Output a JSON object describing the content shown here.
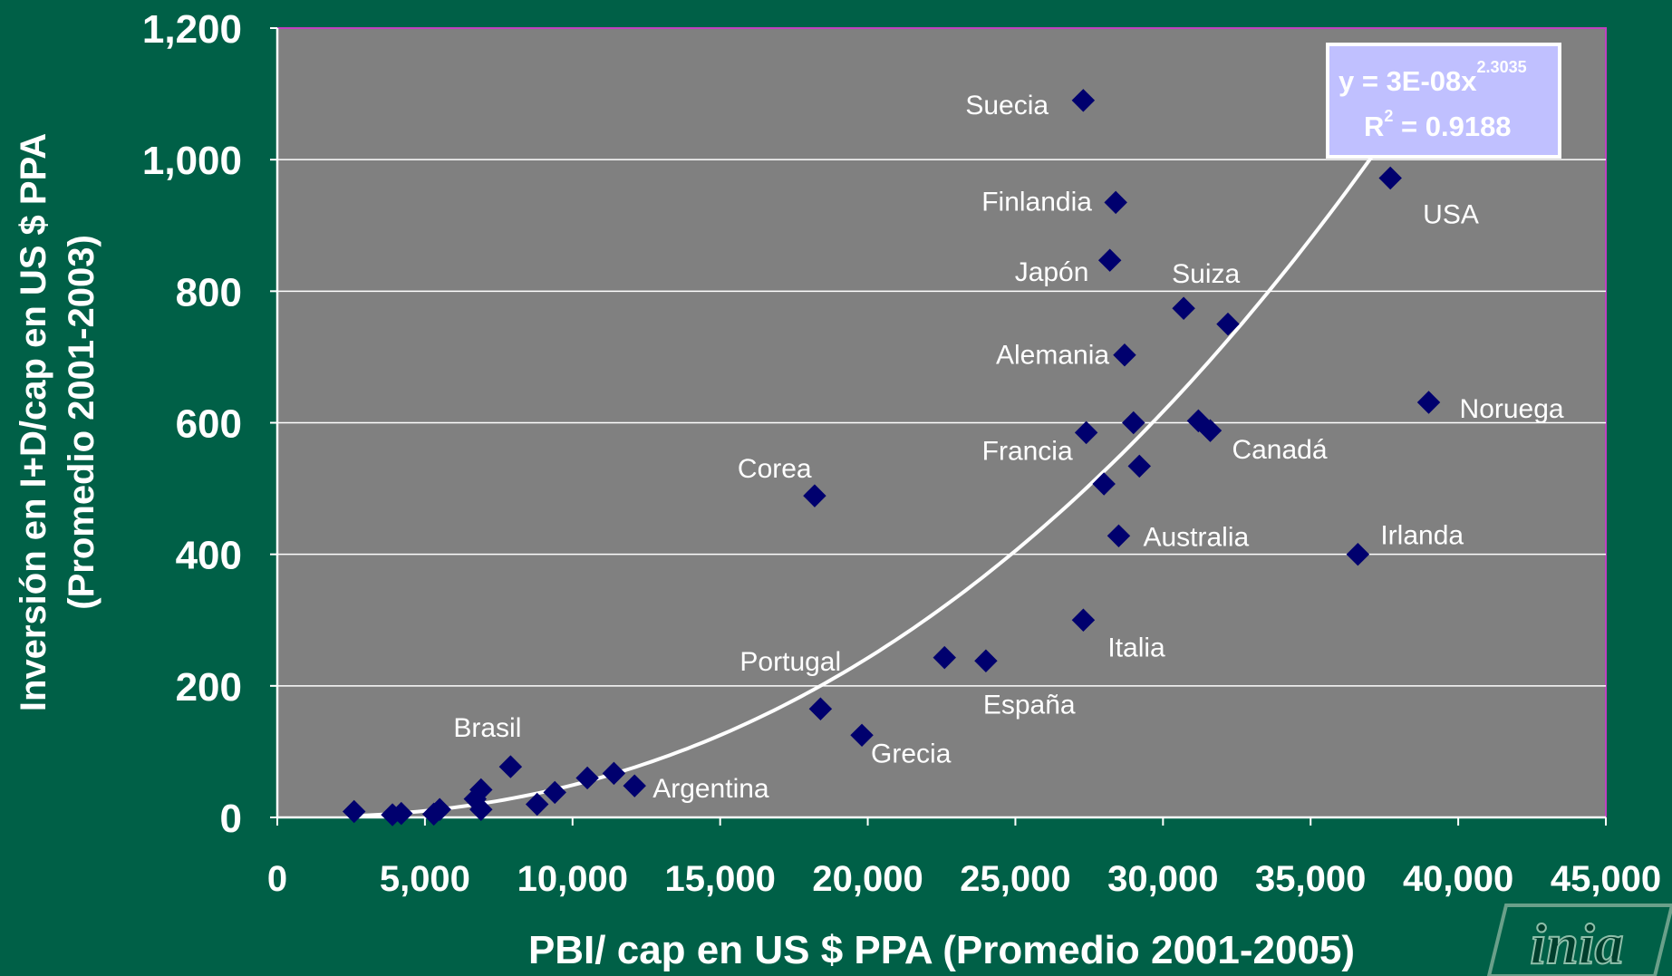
{
  "chart_data": {
    "type": "scatter",
    "xlabel": "PBI/ cap en US $ PPA  (Promedio 2001-2005)",
    "ylabel_line1": "Inversión en I+D/cap en US $ PPA",
    "ylabel_line2": "(Promedio 2001-2003)",
    "xlim": [
      0,
      45000
    ],
    "ylim": [
      0,
      1200
    ],
    "x_ticks": [
      "0",
      "5,000",
      "10,000",
      "15,000",
      "20,000",
      "25,000",
      "30,000",
      "35,000",
      "40,000",
      "45,000"
    ],
    "y_ticks": [
      "0",
      "200",
      "400",
      "600",
      "800",
      "1,000",
      "1,200"
    ],
    "grid": "horizontal",
    "marker_color": "#00006e",
    "plot_background": "#808080",
    "trendline": {
      "a": 3e-08,
      "b": 2.3035,
      "x_start": 2700,
      "x_end": 38000,
      "equation_prefix": "y = 3E-08x",
      "equation_exponent": "2.3035",
      "r2_prefix": "R",
      "r2_sup": "2",
      "r2_value": " = 0.9188"
    },
    "points": [
      {
        "x": 27300,
        "y": 1090,
        "label": "Suecia"
      },
      {
        "x": 28400,
        "y": 935,
        "label": "Finlandia"
      },
      {
        "x": 28200,
        "y": 847,
        "label": "Japón"
      },
      {
        "x": 30700,
        "y": 774,
        "label": "Suiza"
      },
      {
        "x": 32200,
        "y": 750,
        "label": ""
      },
      {
        "x": 28700,
        "y": 703,
        "label": "Alemania"
      },
      {
        "x": 37700,
        "y": 972,
        "label": "USA"
      },
      {
        "x": 39000,
        "y": 631,
        "label": "Noruega"
      },
      {
        "x": 27400,
        "y": 585,
        "label": "Francia"
      },
      {
        "x": 29000,
        "y": 600,
        "label": ""
      },
      {
        "x": 31200,
        "y": 603,
        "label": ""
      },
      {
        "x": 31600,
        "y": 588,
        "label": "Canadá"
      },
      {
        "x": 29200,
        "y": 534,
        "label": ""
      },
      {
        "x": 28000,
        "y": 507,
        "label": ""
      },
      {
        "x": 28500,
        "y": 428,
        "label": "Australia"
      },
      {
        "x": 36600,
        "y": 400,
        "label": "Irlanda"
      },
      {
        "x": 18200,
        "y": 489,
        "label": "Corea"
      },
      {
        "x": 27300,
        "y": 300,
        "label": "Italia"
      },
      {
        "x": 22600,
        "y": 243,
        "label": ""
      },
      {
        "x": 24000,
        "y": 238,
        "label": "España"
      },
      {
        "x": 18400,
        "y": 165,
        "label": "Portugal"
      },
      {
        "x": 19800,
        "y": 125,
        "label": "Grecia"
      },
      {
        "x": 7900,
        "y": 77,
        "label": "Brasil"
      },
      {
        "x": 12100,
        "y": 48,
        "label": "Argentina"
      },
      {
        "x": 11400,
        "y": 67,
        "label": ""
      },
      {
        "x": 10500,
        "y": 60,
        "label": ""
      },
      {
        "x": 9400,
        "y": 38,
        "label": ""
      },
      {
        "x": 8800,
        "y": 20,
        "label": ""
      },
      {
        "x": 6900,
        "y": 42,
        "label": ""
      },
      {
        "x": 6700,
        "y": 28,
        "label": ""
      },
      {
        "x": 6900,
        "y": 12,
        "label": ""
      },
      {
        "x": 5500,
        "y": 12,
        "label": ""
      },
      {
        "x": 5300,
        "y": 5,
        "label": ""
      },
      {
        "x": 4200,
        "y": 6,
        "label": ""
      },
      {
        "x": 3900,
        "y": 4,
        "label": ""
      },
      {
        "x": 2600,
        "y": 9,
        "label": ""
      }
    ]
  },
  "logo": {
    "text": "inia"
  }
}
